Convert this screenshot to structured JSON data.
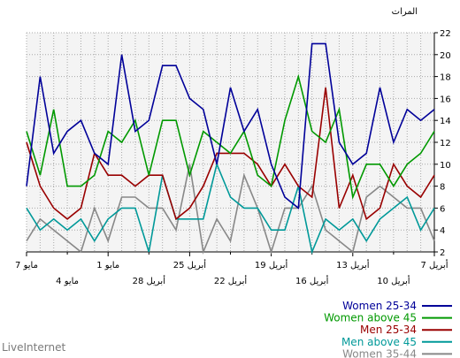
{
  "chart_data": {
    "type": "line",
    "ylabel": "المرات",
    "ylim": [
      2,
      22
    ],
    "yticks": [
      2,
      4,
      6,
      8,
      10,
      12,
      14,
      16,
      18,
      20,
      22
    ],
    "grid": true,
    "legend": "bottom-right",
    "xlim": [
      0,
      30
    ],
    "x": [
      0,
      1,
      2,
      3,
      4,
      5,
      6,
      7,
      8,
      9,
      10,
      11,
      12,
      13,
      14,
      15,
      16,
      17,
      18,
      19,
      20,
      21,
      22,
      23,
      24,
      25,
      26,
      27,
      28,
      29,
      30
    ],
    "xticks_top": [
      {
        "x": 0,
        "label": "7 أبريل"
      },
      {
        "x": 6,
        "label": "13 أبريل"
      },
      {
        "x": 12,
        "label": "19 أبريل"
      },
      {
        "x": 18,
        "label": "25 أبريل"
      },
      {
        "x": 24,
        "label": "1 مايو"
      },
      {
        "x": 30,
        "label": "7 مايو"
      }
    ],
    "xticks_bottom": [
      {
        "x": 3,
        "label": "10 أبريل"
      },
      {
        "x": 9,
        "label": "16 أبريل"
      },
      {
        "x": 15,
        "label": "22 أبريل"
      },
      {
        "x": 21,
        "label": "28 أبريل"
      },
      {
        "x": 27,
        "label": "4 مايو"
      }
    ],
    "series": [
      {
        "name": "Women 25-34",
        "color": "#000099",
        "values": [
          15,
          14,
          15,
          12,
          17,
          11,
          10,
          12,
          21,
          21,
          6,
          7,
          10,
          15,
          13,
          17,
          10,
          15,
          16,
          19,
          19,
          14,
          13,
          20,
          10,
          11,
          14,
          13,
          11,
          18,
          8
        ]
      },
      {
        "name": "Women above 45",
        "color": "#009900",
        "values": [
          13,
          11,
          10,
          8,
          10,
          10,
          7,
          15,
          12,
          13,
          18,
          14,
          8,
          9,
          13,
          11,
          12,
          13,
          9,
          14,
          14,
          9,
          14,
          12,
          13,
          9,
          8,
          8,
          15,
          9,
          13
        ]
      },
      {
        "name": "Men 25-34",
        "color": "#990000",
        "values": [
          9,
          7,
          8,
          10,
          6,
          5,
          9,
          6,
          17,
          7,
          8,
          10,
          8,
          10,
          11,
          11,
          11,
          8,
          6,
          5,
          9,
          9,
          8,
          9,
          9,
          11,
          6,
          5,
          6,
          8,
          12
        ]
      },
      {
        "name": "Men above 45",
        "color": "#009999",
        "values": [
          6,
          4,
          7,
          6,
          5,
          3,
          5,
          4,
          5,
          2,
          8,
          4,
          4,
          6,
          6,
          7,
          10,
          5,
          5,
          5,
          9,
          2,
          6,
          6,
          5,
          3,
          5,
          4,
          5,
          4,
          6
        ]
      },
      {
        "name": "Women 35-44",
        "color": "#888888",
        "values": [
          3,
          6,
          6,
          7,
          8,
          7,
          2,
          3,
          4,
          8,
          6,
          6,
          2,
          6,
          9,
          3,
          5,
          2,
          10,
          4,
          6,
          6,
          7,
          7,
          3,
          6,
          2,
          3,
          4,
          5,
          3
        ]
      }
    ]
  },
  "branding": "LiveInternet"
}
